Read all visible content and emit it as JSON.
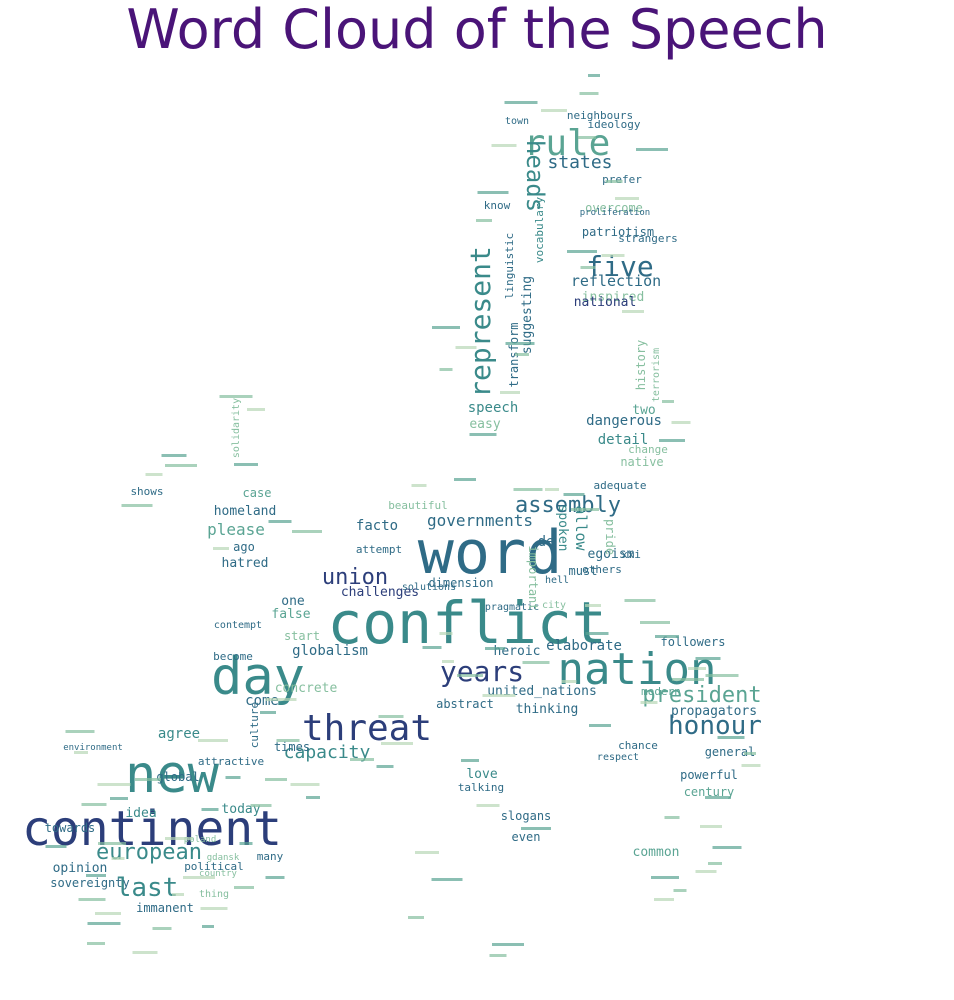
{
  "title": "Word Cloud of the Speech",
  "palette": [
    "#2c3e7a",
    "#2f6b86",
    "#3a8a8a",
    "#5aa493",
    "#86bf9f",
    "#b8d7b7"
  ],
  "words": [
    {
      "text": "word",
      "c": 1
    },
    {
      "text": "conflict",
      "c": 2
    },
    {
      "text": "nation",
      "c": 2
    },
    {
      "text": "day",
      "c": 2
    },
    {
      "text": "threat",
      "c": 0
    },
    {
      "text": "new",
      "c": 2
    },
    {
      "text": "continent",
      "c": 0
    },
    {
      "text": "rule",
      "c": 3
    },
    {
      "text": "five",
      "c": 1
    },
    {
      "text": "heads",
      "c": 2
    },
    {
      "text": "represent",
      "c": 2
    },
    {
      "text": "states",
      "c": 1
    },
    {
      "text": "assembly",
      "c": 1
    },
    {
      "text": "union",
      "c": 0
    },
    {
      "text": "years",
      "c": 0
    },
    {
      "text": "honour",
      "c": 1
    },
    {
      "text": "president",
      "c": 3
    },
    {
      "text": "european",
      "c": 2
    },
    {
      "text": "last",
      "c": 2
    },
    {
      "text": "capacity",
      "c": 2
    },
    {
      "text": "governments",
      "c": 1
    },
    {
      "text": "reflection",
      "c": 1
    },
    {
      "text": "inspired",
      "c": 4
    },
    {
      "text": "overcome",
      "c": 4
    },
    {
      "text": "patriotism",
      "c": 1
    },
    {
      "text": "national",
      "c": 0
    },
    {
      "text": "speech",
      "c": 2
    },
    {
      "text": "easy",
      "c": 4
    },
    {
      "text": "dangerous",
      "c": 1
    },
    {
      "text": "detail",
      "c": 2
    },
    {
      "text": "two",
      "c": 3
    },
    {
      "text": "suggesting",
      "c": 1
    },
    {
      "text": "transform",
      "c": 1
    },
    {
      "text": "linguistic",
      "c": 1
    },
    {
      "text": "vocabulary",
      "c": 2
    },
    {
      "text": "ideology",
      "c": 1
    },
    {
      "text": "neighbours",
      "c": 1
    },
    {
      "text": "homeland",
      "c": 1
    },
    {
      "text": "please",
      "c": 3
    },
    {
      "text": "ago",
      "c": 1
    },
    {
      "text": "hatred",
      "c": 1
    },
    {
      "text": "case",
      "c": 3
    },
    {
      "text": "shows",
      "c": 1
    },
    {
      "text": "facto",
      "c": 1
    },
    {
      "text": "de",
      "c": 1
    },
    {
      "text": "attempt",
      "c": 1
    },
    {
      "text": "challenges",
      "c": 0
    },
    {
      "text": "dimension",
      "c": 1
    },
    {
      "text": "must",
      "c": 1
    },
    {
      "text": "elaborate",
      "c": 1
    },
    {
      "text": "heroic",
      "c": 1
    },
    {
      "text": "globalism",
      "c": 1
    },
    {
      "text": "false",
      "c": 3
    },
    {
      "text": "start",
      "c": 4
    },
    {
      "text": "one",
      "c": 1
    },
    {
      "text": "contempt",
      "c": 1
    },
    {
      "text": "become",
      "c": 1
    },
    {
      "text": "come",
      "c": 1
    },
    {
      "text": "united_nations",
      "c": 1
    },
    {
      "text": "abstract",
      "c": 1
    },
    {
      "text": "thinking",
      "c": 1
    },
    {
      "text": "followers",
      "c": 1
    },
    {
      "text": "propagators",
      "c": 1
    },
    {
      "text": "general",
      "c": 1
    },
    {
      "text": "powerful",
      "c": 1
    },
    {
      "text": "century",
      "c": 3
    },
    {
      "text": "love",
      "c": 2
    },
    {
      "text": "talking",
      "c": 1
    },
    {
      "text": "slogans",
      "c": 1
    },
    {
      "text": "even",
      "c": 1
    },
    {
      "text": "common",
      "c": 3
    },
    {
      "text": "times",
      "c": 1
    },
    {
      "text": "global",
      "c": 1
    },
    {
      "text": "agree",
      "c": 2
    },
    {
      "text": "attractive",
      "c": 1
    },
    {
      "text": "idea",
      "c": 2
    },
    {
      "text": "today",
      "c": 2
    },
    {
      "text": "towards",
      "c": 1
    },
    {
      "text": "opinion",
      "c": 1
    },
    {
      "text": "sovereignty",
      "c": 1
    },
    {
      "text": "immanent",
      "c": 1
    },
    {
      "text": "political",
      "c": 1
    },
    {
      "text": "many",
      "c": 1
    },
    {
      "text": "allow",
      "c": 2
    },
    {
      "text": "spoken",
      "c": 2
    },
    {
      "text": "egoism",
      "c": 1
    },
    {
      "text": "others",
      "c": 1
    },
    {
      "text": "xxi",
      "c": 1
    },
    {
      "text": "history",
      "c": 4
    },
    {
      "text": "native",
      "c": 4
    },
    {
      "text": "change",
      "c": 4
    },
    {
      "text": "prefer",
      "c": 1
    },
    {
      "text": "strangers",
      "c": 1
    },
    {
      "text": "know",
      "c": 1
    },
    {
      "text": "town",
      "c": 1
    },
    {
      "text": "modern",
      "c": 3
    },
    {
      "text": "chance",
      "c": 1
    },
    {
      "text": "respect",
      "c": 1
    },
    {
      "text": "culture",
      "c": 1
    },
    {
      "text": "concrete",
      "c": 4
    },
    {
      "text": "solutions",
      "c": 1
    },
    {
      "text": "proliferation",
      "c": 1
    },
    {
      "text": "terrorism",
      "c": 4
    },
    {
      "text": "city",
      "c": 4
    },
    {
      "text": "adequate",
      "c": 1
    },
    {
      "text": "beautiful",
      "c": 4
    },
    {
      "text": "pragmatic",
      "c": 1
    },
    {
      "text": "gdansk",
      "c": 4
    },
    {
      "text": "poland",
      "c": 4
    },
    {
      "text": "country",
      "c": 4
    },
    {
      "text": "thing",
      "c": 4
    },
    {
      "text": "solidarity",
      "c": 4
    },
    {
      "text": "environment",
      "c": 1
    },
    {
      "text": "pride",
      "c": 4
    },
    {
      "text": "important",
      "c": 4
    },
    {
      "text": "hell",
      "c": 1
    }
  ]
}
